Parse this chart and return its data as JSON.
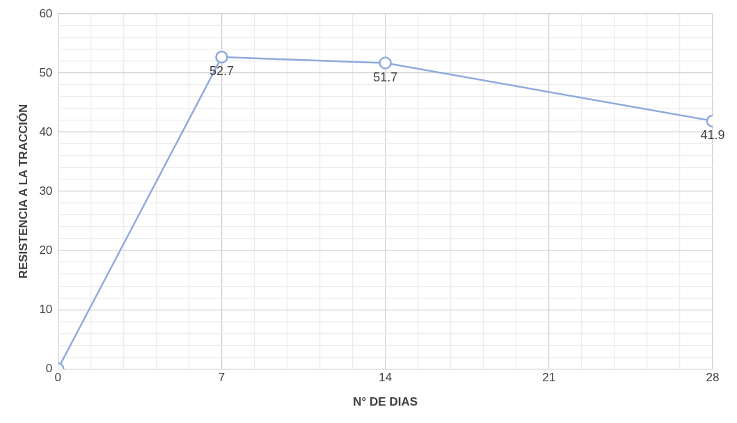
{
  "chart_data": {
    "type": "line",
    "xlabel": "N° DE DIAS",
    "ylabel": "RESISTENCIA A LA TRACCIÓN",
    "x": [
      0,
      7,
      14,
      28
    ],
    "series": [
      {
        "color": "#8faadc",
        "values": [
          0,
          52.7,
          51.7,
          41.9
        ],
        "value_labels": [
          null,
          "52.7",
          "51.7",
          "41.9"
        ]
      }
    ],
    "xlim": [
      0,
      28
    ],
    "xticks": [
      0,
      {
        "value": 1.4,
        "label": null
      },
      {
        "value": 2.8,
        "label": null
      },
      {
        "value": 4.2,
        "label": null
      },
      {
        "value": 5.6,
        "label": null
      },
      7,
      {
        "value": 8.4,
        "label": null
      },
      {
        "value": 9.8,
        "label": null
      },
      {
        "value": 11.2,
        "label": null
      },
      {
        "value": 12.6,
        "label": null
      },
      14,
      {
        "value": 15.4,
        "label": null
      },
      {
        "value": 16.8,
        "label": null
      },
      {
        "value": 18.2,
        "label": null
      },
      {
        "value": 19.6,
        "label": null
      },
      21,
      {
        "value": 22.4,
        "label": null
      },
      {
        "value": 23.8,
        "label": null
      },
      {
        "value": 25.2,
        "label": null
      },
      {
        "value": 26.6,
        "label": null
      },
      28
    ],
    "ylim": [
      0,
      60
    ],
    "yticks": [
      0,
      {
        "value": 2,
        "label": null
      },
      {
        "value": 4,
        "label": null
      },
      {
        "value": 6,
        "label": null
      },
      {
        "value": 8,
        "label": null
      },
      10,
      {
        "value": 12,
        "label": null
      },
      {
        "value": 14,
        "label": null
      },
      {
        "value": 16,
        "label": null
      },
      {
        "value": 18,
        "label": null
      },
      20,
      {
        "value": 22,
        "label": null
      },
      {
        "value": 24,
        "label": null
      },
      {
        "value": 26,
        "label": null
      },
      {
        "value": 28,
        "label": null
      },
      30,
      {
        "value": 32,
        "label": null
      },
      {
        "value": 34,
        "label": null
      },
      {
        "value": 36,
        "label": null
      },
      {
        "value": 38,
        "label": null
      },
      40,
      {
        "value": 42,
        "label": null
      },
      {
        "value": 44,
        "label": null
      },
      {
        "value": 46,
        "label": null
      },
      {
        "value": 48,
        "label": null
      },
      50,
      {
        "value": 52,
        "label": null
      },
      {
        "value": 54,
        "label": null
      },
      {
        "value": 56,
        "label": null
      },
      {
        "value": 58,
        "label": null
      },
      60
    ],
    "grid": true,
    "marker": "circle",
    "line_style": "solid"
  }
}
